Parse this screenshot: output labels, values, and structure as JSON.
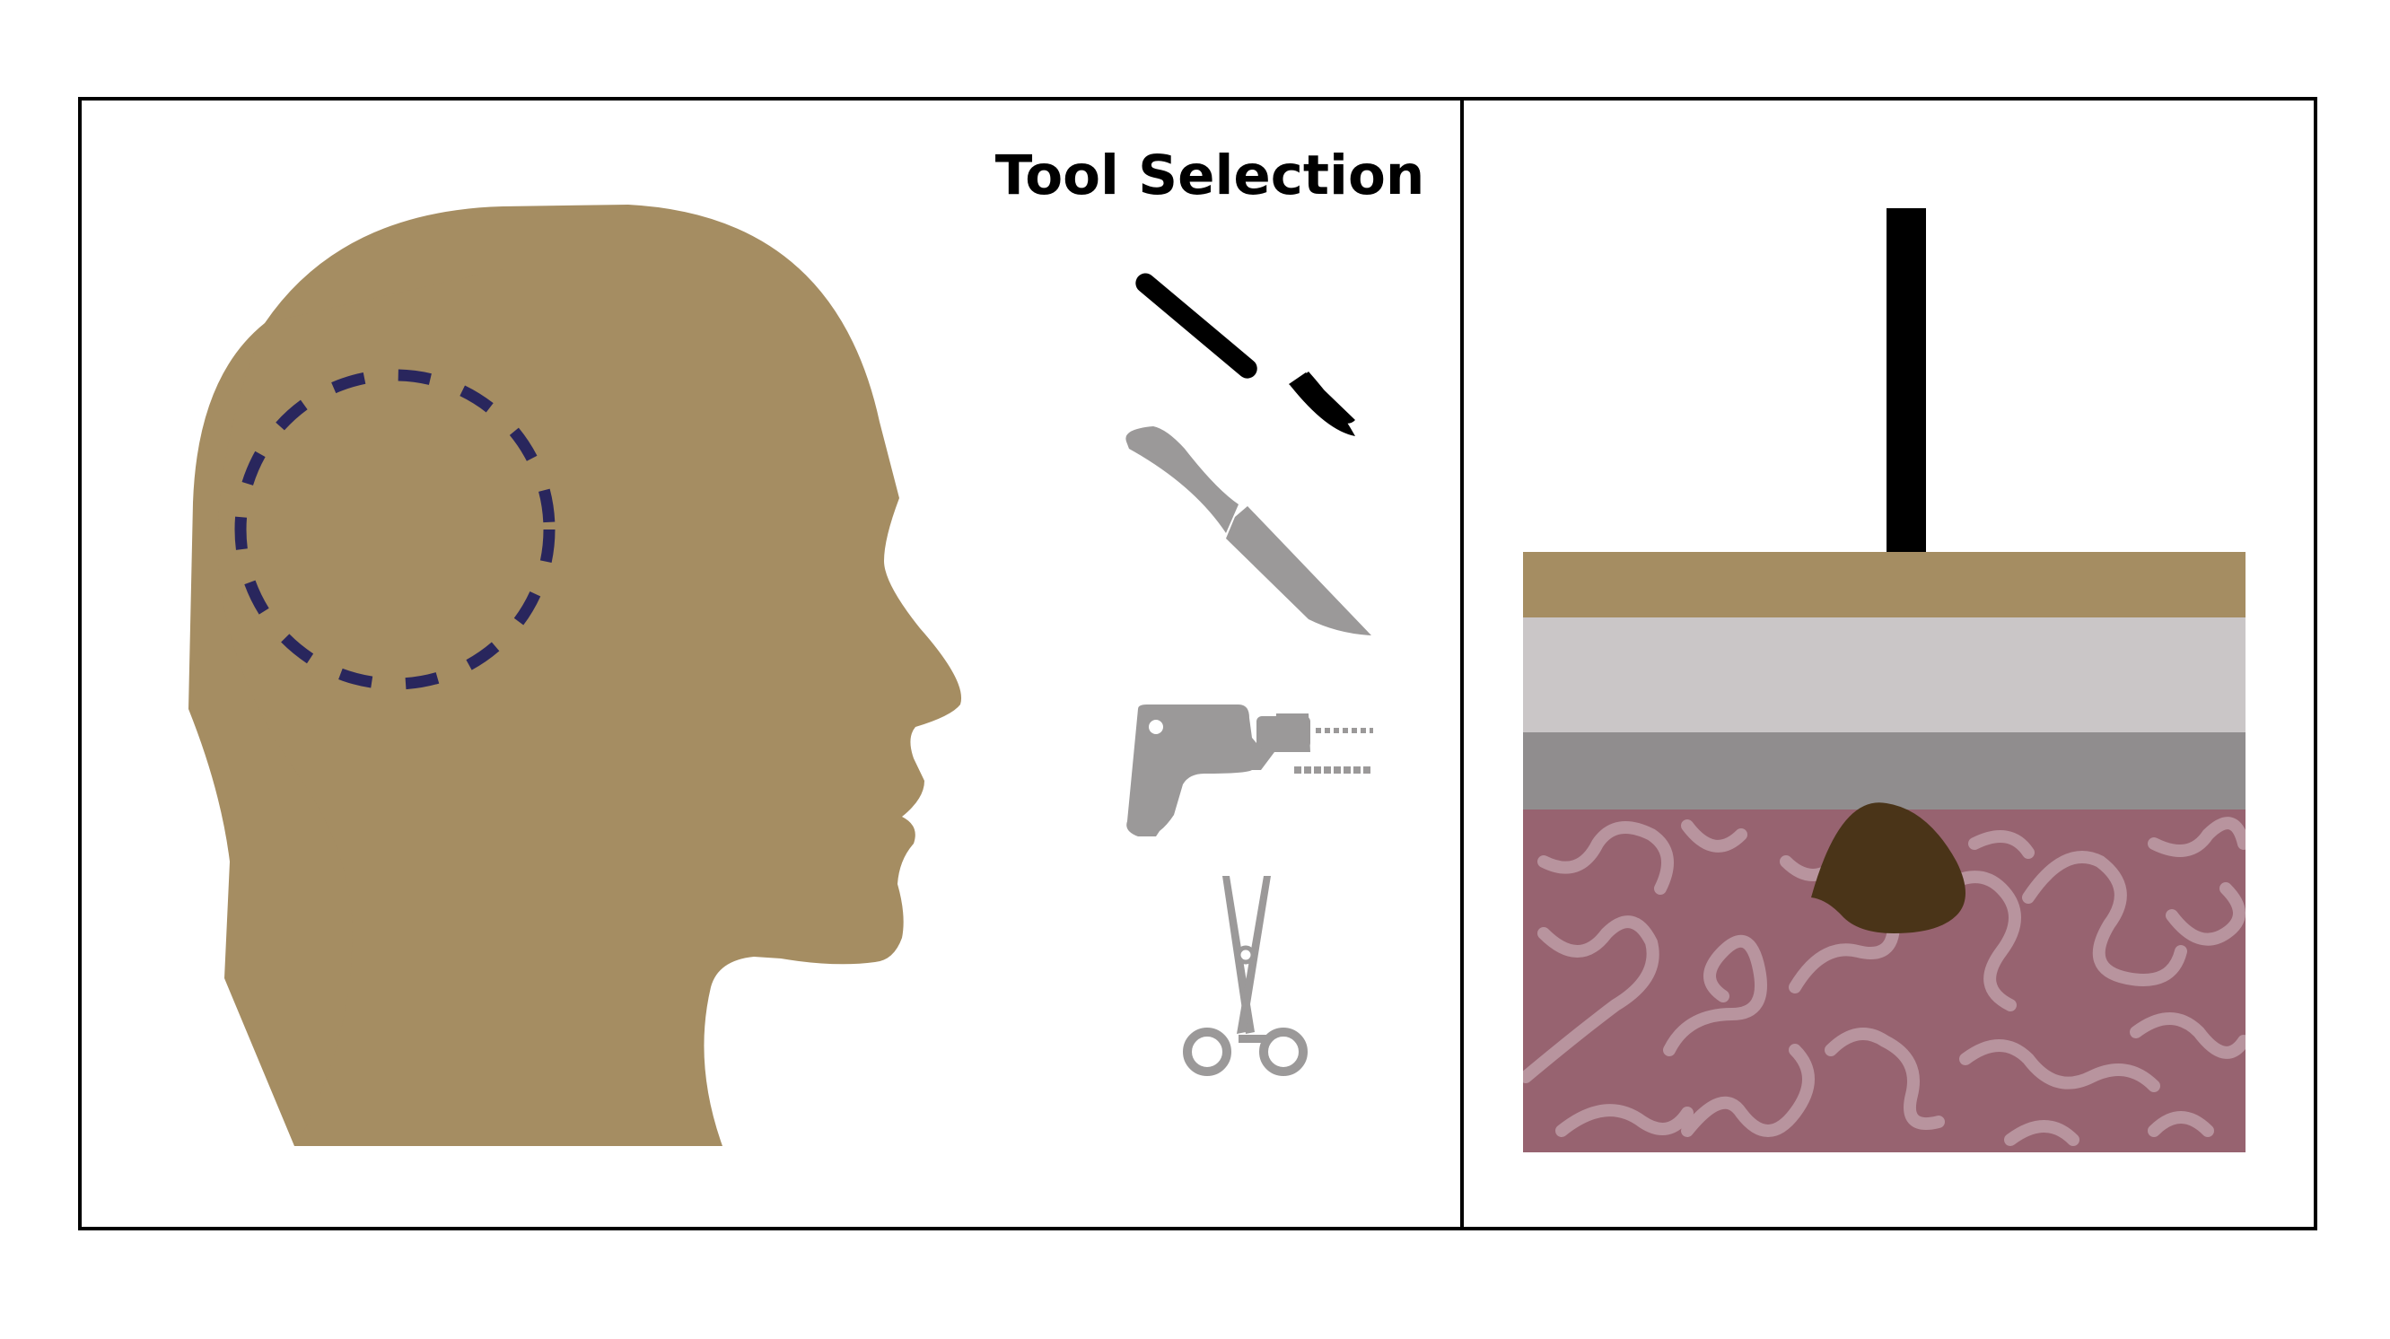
{
  "tool_panel": {
    "title": "Tool Selection",
    "tools": [
      {
        "name": "scalpel-icon",
        "state": "selected"
      },
      {
        "name": "knife-icon",
        "state": "unselected"
      },
      {
        "name": "drill-icon",
        "state": "unselected"
      },
      {
        "name": "forceps-icon",
        "state": "unselected"
      }
    ]
  },
  "colors": {
    "frame": "#000000",
    "skin": "#a58d62",
    "bone_light": "#cac6c7",
    "bone_dark": "#908d8e",
    "brain": "#976370",
    "brain_folds": "#b8949e",
    "tumor": "#4a3418",
    "target_ring": "#29265d",
    "tool_active": "#000000",
    "tool_inactive": "#9b9999"
  }
}
